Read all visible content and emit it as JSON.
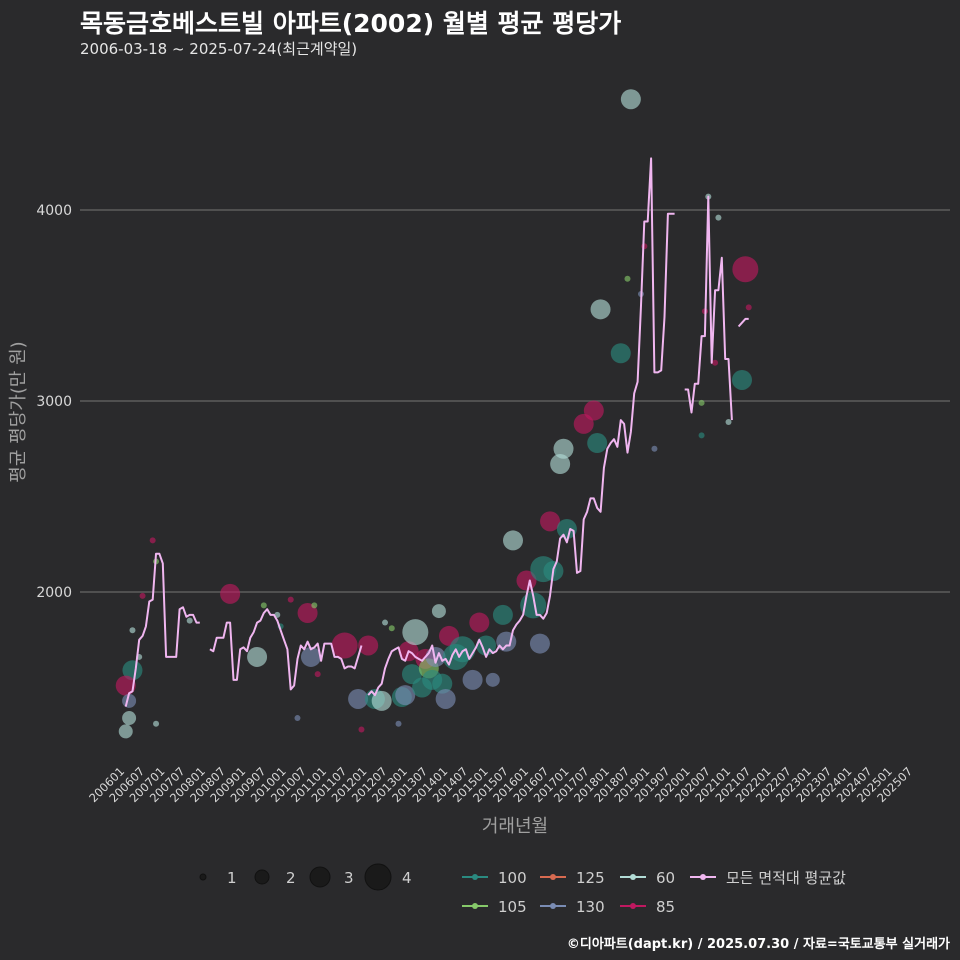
{
  "title": "목동금호베스트빌 아파트(2002) 월별 평균 평당가",
  "subtitle": "2006-03-18 ~ 2025-07-24(최근계약일)",
  "footer": "©디아파트(dapt.kr) / 2025.07.30 / 자료=국토교통부 실거래가",
  "colors": {
    "background": "#2a2a2c",
    "grid": "#5c5c5c",
    "line": "#f0b6f0",
    "s100": "#2a8a80",
    "s105": "#86c96a",
    "s125": "#d86a50",
    "s130": "#7a8cb4",
    "s60": "#b2dcd6",
    "s85": "#c01860"
  },
  "chart_data": {
    "type": "scatter",
    "xlabel": "거래년월",
    "ylabel": "평균 평당가(만 원)",
    "ylim": [
      1150,
      4750
    ],
    "yticks": [
      2000,
      3000,
      4000
    ],
    "xticks": [
      "200601",
      "200607",
      "200701",
      "200707",
      "200801",
      "200807",
      "200901",
      "200907",
      "201001",
      "201007",
      "201101",
      "201107",
      "201201",
      "201207",
      "201301",
      "201307",
      "201401",
      "201407",
      "201501",
      "201507",
      "201601",
      "201607",
      "201701",
      "201707",
      "201801",
      "201807",
      "201901",
      "201907",
      "202001",
      "202007",
      "202101",
      "202107",
      "202201",
      "202207",
      "202301",
      "202307",
      "202401",
      "202407",
      "202501",
      "202507"
    ],
    "grid": "horizontal",
    "size_legend": {
      "values": [
        1,
        2,
        3,
        4
      ]
    },
    "color_legend": [
      {
        "name": "100",
        "key": "s100"
      },
      {
        "name": "105",
        "key": "s105"
      },
      {
        "name": "125",
        "key": "s125"
      },
      {
        "name": "130",
        "key": "s130"
      },
      {
        "name": "60",
        "key": "s60"
      },
      {
        "name": "85",
        "key": "s85"
      },
      {
        "name": "모든 면적대 평균값",
        "key": "line"
      }
    ],
    "average_line": [
      [
        "200603",
        1400
      ],
      [
        "200604",
        1470
      ],
      [
        "200605",
        1480
      ],
      [
        "200606",
        1600
      ],
      [
        "200607",
        1750
      ],
      [
        "200608",
        1770
      ],
      [
        "200609",
        1820
      ],
      [
        "200610",
        1950
      ],
      [
        "200611",
        1960
      ],
      [
        "200612",
        2200
      ],
      [
        "200701",
        2200
      ],
      [
        "200702",
        2150
      ],
      [
        "200703",
        1660
      ],
      [
        "200704",
        1660
      ],
      [
        "200705",
        1660
      ],
      [
        "200706",
        1660
      ],
      [
        "200707",
        1910
      ],
      [
        "200708",
        1920
      ],
      [
        "200709",
        1870
      ],
      [
        "200710",
        1880
      ],
      [
        "200711",
        1880
      ],
      [
        "200712",
        1840
      ],
      [
        "200801",
        1840
      ],
      null,
      [
        "200804",
        1700
      ],
      [
        "200805",
        1690
      ],
      [
        "200806",
        1760
      ],
      [
        "200807",
        1760
      ],
      [
        "200808",
        1760
      ],
      [
        "200809",
        1840
      ],
      [
        "200810",
        1840
      ],
      [
        "200811",
        1540
      ],
      [
        "200812",
        1540
      ],
      [
        "200901",
        1700
      ],
      [
        "200902",
        1710
      ],
      [
        "200903",
        1690
      ],
      [
        "200904",
        1760
      ],
      [
        "200905",
        1790
      ],
      [
        "200906",
        1840
      ],
      [
        "200907",
        1850
      ],
      [
        "200908",
        1890
      ],
      [
        "200909",
        1910
      ],
      [
        "200910",
        1880
      ],
      [
        "200911",
        1880
      ],
      [
        "200912",
        1850
      ],
      [
        "201001",
        1800
      ],
      [
        "201002",
        1750
      ],
      [
        "201003",
        1700
      ],
      [
        "201004",
        1490
      ],
      [
        "201005",
        1510
      ],
      [
        "201006",
        1650
      ],
      [
        "201007",
        1720
      ],
      [
        "201008",
        1700
      ],
      [
        "201009",
        1740
      ],
      [
        "201010",
        1700
      ],
      [
        "201011",
        1710
      ],
      [
        "201012",
        1730
      ],
      [
        "201101",
        1640
      ],
      [
        "201102",
        1730
      ],
      [
        "201103",
        1730
      ],
      [
        "201104",
        1730
      ],
      [
        "201105",
        1660
      ],
      [
        "201106",
        1660
      ],
      [
        "201107",
        1650
      ],
      [
        "201108",
        1600
      ],
      [
        "201109",
        1610
      ],
      [
        "201110",
        1610
      ],
      [
        "201111",
        1600
      ],
      [
        "201112",
        1660
      ],
      [
        "201201",
        1720
      ],
      null,
      [
        "201203",
        1460
      ],
      [
        "201204",
        1480
      ],
      [
        "201205",
        1460
      ],
      [
        "201206",
        1500
      ],
      [
        "201207",
        1520
      ],
      [
        "201208",
        1600
      ],
      [
        "201209",
        1650
      ],
      [
        "201210",
        1690
      ],
      [
        "201211",
        1700
      ],
      [
        "201212",
        1710
      ],
      [
        "201301",
        1650
      ],
      [
        "201302",
        1640
      ],
      [
        "201303",
        1690
      ],
      [
        "201304",
        1680
      ],
      [
        "201305",
        1660
      ],
      [
        "201306",
        1650
      ],
      [
        "201307",
        1640
      ],
      [
        "201308",
        1660
      ],
      [
        "201309",
        1680
      ],
      [
        "201310",
        1720
      ],
      [
        "201311",
        1630
      ],
      [
        "201312",
        1680
      ],
      [
        "201401",
        1640
      ],
      [
        "201402",
        1650
      ],
      [
        "201403",
        1620
      ],
      [
        "201404",
        1670
      ],
      [
        "201405",
        1700
      ],
      [
        "201406",
        1660
      ],
      [
        "201407",
        1690
      ],
      [
        "201408",
        1700
      ],
      [
        "201409",
        1650
      ],
      [
        "201410",
        1680
      ],
      [
        "201411",
        1710
      ],
      [
        "201412",
        1750
      ],
      [
        "201501",
        1710
      ],
      [
        "201502",
        1660
      ],
      [
        "201503",
        1700
      ],
      [
        "201504",
        1680
      ],
      [
        "201505",
        1690
      ],
      [
        "201506",
        1720
      ],
      [
        "201507",
        1700
      ],
      [
        "201508",
        1720
      ],
      [
        "201509",
        1720
      ],
      [
        "201510",
        1800
      ],
      [
        "201511",
        1830
      ],
      [
        "201512",
        1850
      ],
      [
        "201601",
        1880
      ],
      [
        "201602",
        1980
      ],
      [
        "201603",
        2060
      ],
      [
        "201604",
        1980
      ],
      [
        "201605",
        1880
      ],
      [
        "201606",
        1880
      ],
      [
        "201607",
        1860
      ],
      [
        "201608",
        1890
      ],
      [
        "201609",
        1980
      ],
      [
        "201610",
        2120
      ],
      [
        "201611",
        2160
      ],
      [
        "201612",
        2280
      ],
      [
        "201701",
        2300
      ],
      [
        "201702",
        2260
      ],
      [
        "201703",
        2330
      ],
      [
        "201704",
        2320
      ],
      [
        "201705",
        2100
      ],
      [
        "201706",
        2110
      ],
      [
        "201707",
        2380
      ],
      [
        "201708",
        2420
      ],
      [
        "201709",
        2490
      ],
      [
        "201710",
        2490
      ],
      [
        "201711",
        2440
      ],
      [
        "201712",
        2420
      ],
      [
        "201801",
        2650
      ],
      [
        "201802",
        2750
      ],
      [
        "201803",
        2780
      ],
      [
        "201804",
        2800
      ],
      [
        "201805",
        2760
      ],
      [
        "201806",
        2900
      ],
      [
        "201807",
        2880
      ],
      [
        "201808",
        2730
      ],
      [
        "201809",
        2840
      ],
      [
        "201810",
        3040
      ],
      [
        "201811",
        3100
      ],
      [
        "201812",
        3500
      ],
      [
        "201901",
        3940
      ],
      [
        "201902",
        3940
      ],
      [
        "201903",
        4270
      ],
      [
        "201904",
        3150
      ],
      [
        "201905",
        3150
      ],
      [
        "201906",
        3160
      ],
      [
        "201907",
        3440
      ],
      [
        "201908",
        3980
      ],
      [
        "201909",
        3980
      ],
      [
        "201910",
        3980
      ],
      null,
      [
        "202001",
        3060
      ],
      [
        "202002",
        3060
      ],
      [
        "202003",
        2940
      ],
      [
        "202004",
        3090
      ],
      [
        "202005",
        3090
      ],
      [
        "202006",
        3340
      ],
      [
        "202007",
        3340
      ],
      [
        "202008",
        4070
      ],
      [
        "202009",
        3200
      ],
      [
        "202010",
        3580
      ],
      [
        "202011",
        3580
      ],
      [
        "202012",
        3750
      ],
      [
        "202101",
        3220
      ],
      [
        "202102",
        3220
      ],
      [
        "202103",
        2900
      ],
      null,
      [
        "202105",
        3390
      ],
      [
        "202106",
        3410
      ],
      [
        "202107",
        3430
      ],
      [
        "202108",
        3430
      ]
    ],
    "bubbles": [
      {
        "x": "200603",
        "y": 1270,
        "size": 2,
        "series": "s60"
      },
      {
        "x": "200604",
        "y": 1340,
        "size": 2,
        "series": "s60"
      },
      {
        "x": "200605",
        "y": 1590,
        "size": 3,
        "series": "s100"
      },
      {
        "x": "200603",
        "y": 1510,
        "size": 3,
        "series": "s85"
      },
      {
        "x": "200604",
        "y": 1430,
        "size": 2,
        "series": "s130"
      },
      {
        "x": "200607",
        "y": 1660,
        "size": 1,
        "series": "s60"
      },
      {
        "x": "200611",
        "y": 2270,
        "size": 1,
        "series": "s85"
      },
      {
        "x": "200608",
        "y": 1980,
        "size": 1,
        "series": "s85"
      },
      {
        "x": "200612",
        "y": 2160,
        "size": 1,
        "series": "s105"
      },
      {
        "x": "200605",
        "y": 1800,
        "size": 1,
        "series": "s60"
      },
      {
        "x": "200612",
        "y": 1310,
        "size": 1,
        "series": "s60"
      },
      {
        "x": "200710",
        "y": 1850,
        "size": 1,
        "series": "s60"
      },
      {
        "x": "200810",
        "y": 1990,
        "size": 3,
        "series": "s85"
      },
      {
        "x": "200906",
        "y": 1660,
        "size": 3,
        "series": "s60"
      },
      {
        "x": "200908",
        "y": 1930,
        "size": 1,
        "series": "s105"
      },
      {
        "x": "200912",
        "y": 1880,
        "size": 1,
        "series": "s60"
      },
      {
        "x": "201001",
        "y": 1820,
        "size": 1,
        "series": "s100"
      },
      {
        "x": "201004",
        "y": 1960,
        "size": 1,
        "series": "s85"
      },
      {
        "x": "201006",
        "y": 1340,
        "size": 1,
        "series": "s130"
      },
      {
        "x": "201009",
        "y": 1890,
        "size": 3,
        "series": "s85"
      },
      {
        "x": "201010",
        "y": 1660,
        "size": 3,
        "series": "s130"
      },
      {
        "x": "201011",
        "y": 1930,
        "size": 1,
        "series": "s105"
      },
      {
        "x": "201012",
        "y": 1570,
        "size": 1,
        "series": "s85"
      },
      {
        "x": "201108",
        "y": 1720,
        "size": 4,
        "series": "s85"
      },
      {
        "x": "201112",
        "y": 1440,
        "size": 3,
        "series": "s130"
      },
      {
        "x": "201201",
        "y": 1280,
        "size": 1,
        "series": "s85"
      },
      {
        "x": "201203",
        "y": 1720,
        "size": 3,
        "series": "s85"
      },
      {
        "x": "201205",
        "y": 1440,
        "size": 3,
        "series": "s100"
      },
      {
        "x": "201207",
        "y": 1430,
        "size": 3,
        "series": "s60"
      },
      {
        "x": "201208",
        "y": 1840,
        "size": 1,
        "series": "s60"
      },
      {
        "x": "201210",
        "y": 1810,
        "size": 1,
        "series": "s105"
      },
      {
        "x": "201212",
        "y": 1310,
        "size": 1,
        "series": "s130"
      },
      {
        "x": "201301",
        "y": 1450,
        "size": 3,
        "series": "s100"
      },
      {
        "x": "201302",
        "y": 1460,
        "size": 3,
        "series": "s130"
      },
      {
        "x": "201303",
        "y": 1690,
        "size": 3,
        "series": "s85"
      },
      {
        "x": "201304",
        "y": 1570,
        "size": 3,
        "series": "s100"
      },
      {
        "x": "201305",
        "y": 1790,
        "size": 4,
        "series": "s60"
      },
      {
        "x": "201307",
        "y": 1500,
        "size": 3,
        "series": "s100"
      },
      {
        "x": "201308",
        "y": 1650,
        "size": 3,
        "series": "s85"
      },
      {
        "x": "201309",
        "y": 1600,
        "size": 3,
        "series": "s105"
      },
      {
        "x": "201310",
        "y": 1540,
        "size": 3,
        "series": "s100"
      },
      {
        "x": "201311",
        "y": 1660,
        "size": 3,
        "series": "s130"
      },
      {
        "x": "201312",
        "y": 1900,
        "size": 2,
        "series": "s60"
      },
      {
        "x": "201401",
        "y": 1520,
        "size": 3,
        "series": "s100"
      },
      {
        "x": "201402",
        "y": 1440,
        "size": 3,
        "series": "s130"
      },
      {
        "x": "201403",
        "y": 1770,
        "size": 3,
        "series": "s85"
      },
      {
        "x": "201405",
        "y": 1660,
        "size": 4,
        "series": "s100"
      },
      {
        "x": "201407",
        "y": 1700,
        "size": 4,
        "series": "s100"
      },
      {
        "x": "201410",
        "y": 1540,
        "size": 3,
        "series": "s130"
      },
      {
        "x": "201412",
        "y": 1840,
        "size": 3,
        "series": "s85"
      },
      {
        "x": "201502",
        "y": 1720,
        "size": 3,
        "series": "s100"
      },
      {
        "x": "201504",
        "y": 1540,
        "size": 2,
        "series": "s130"
      },
      {
        "x": "201507",
        "y": 1880,
        "size": 3,
        "series": "s100"
      },
      {
        "x": "201508",
        "y": 1740,
        "size": 3,
        "series": "s130"
      },
      {
        "x": "201510",
        "y": 2270,
        "size": 3,
        "series": "s60"
      },
      {
        "x": "201602",
        "y": 2060,
        "size": 3,
        "series": "s85"
      },
      {
        "x": "201604",
        "y": 1930,
        "size": 4,
        "series": "s100"
      },
      {
        "x": "201606",
        "y": 1730,
        "size": 3,
        "series": "s130"
      },
      {
        "x": "201607",
        "y": 2120,
        "size": 4,
        "series": "s100"
      },
      {
        "x": "201609",
        "y": 2370,
        "size": 3,
        "series": "s85"
      },
      {
        "x": "201610",
        "y": 2110,
        "size": 3,
        "series": "s100"
      },
      {
        "x": "201612",
        "y": 2670,
        "size": 3,
        "series": "s60"
      },
      {
        "x": "201701",
        "y": 2750,
        "size": 3,
        "series": "s60"
      },
      {
        "x": "201702",
        "y": 2330,
        "size": 3,
        "series": "s100"
      },
      {
        "x": "201707",
        "y": 2880,
        "size": 3,
        "series": "s85"
      },
      {
        "x": "201710",
        "y": 2950,
        "size": 3,
        "series": "s85"
      },
      {
        "x": "201711",
        "y": 2780,
        "size": 3,
        "series": "s100"
      },
      {
        "x": "201712",
        "y": 3480,
        "size": 3,
        "series": "s60"
      },
      {
        "x": "201806",
        "y": 3250,
        "size": 3,
        "series": "s100"
      },
      {
        "x": "201808",
        "y": 3640,
        "size": 1,
        "series": "s105"
      },
      {
        "x": "201809",
        "y": 4580,
        "size": 3,
        "series": "s60"
      },
      {
        "x": "201812",
        "y": 3560,
        "size": 1,
        "series": "s130"
      },
      {
        "x": "201901",
        "y": 3810,
        "size": 1,
        "series": "s85"
      },
      {
        "x": "201904",
        "y": 2750,
        "size": 1,
        "series": "s130"
      },
      {
        "x": "202006",
        "y": 2820,
        "size": 1,
        "series": "s100"
      },
      {
        "x": "202006",
        "y": 2990,
        "size": 1,
        "series": "s105"
      },
      {
        "x": "202007",
        "y": 3470,
        "size": 1,
        "series": "s85"
      },
      {
        "x": "202008",
        "y": 4070,
        "size": 1,
        "series": "s60"
      },
      {
        "x": "202010",
        "y": 3200,
        "size": 1,
        "series": "s85"
      },
      {
        "x": "202011",
        "y": 3960,
        "size": 1,
        "series": "s60"
      },
      {
        "x": "202102",
        "y": 2890,
        "size": 1,
        "series": "s60"
      },
      {
        "x": "202107",
        "y": 3690,
        "size": 4,
        "series": "s85"
      },
      {
        "x": "202108",
        "y": 3490,
        "size": 1,
        "series": "s85"
      },
      {
        "x": "202106",
        "y": 3110,
        "size": 3,
        "series": "s100"
      }
    ]
  }
}
